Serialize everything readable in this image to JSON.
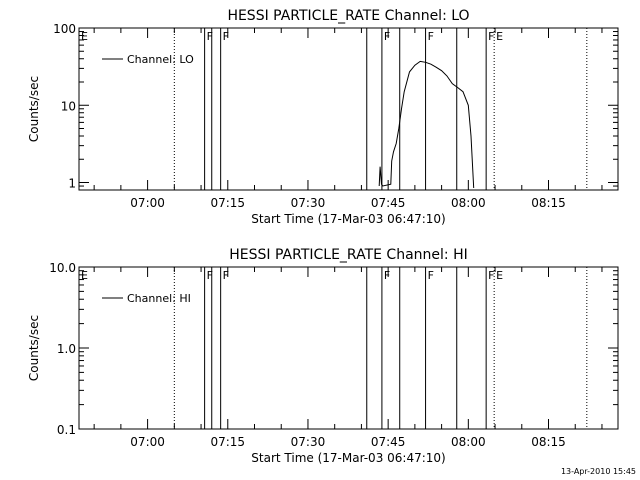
{
  "footer": {
    "timestamp": "13-Apr-2010 15:45"
  },
  "chart_data": [
    {
      "type": "line",
      "title": "HESSI PARTICLE_RATE Channel: LO",
      "xlabel": "Start Time (17-Mar-03 06:47:10)",
      "ylabel": "Counts/sec",
      "yscale": "log",
      "ylim": [
        0.8,
        100
      ],
      "ytick_labels": [
        "1",
        "10",
        "100"
      ],
      "ytick_values": [
        1,
        10,
        100
      ],
      "xtick_labels": [
        "07:00",
        "07:15",
        "07:30",
        "07:45",
        "08:00",
        "08:15"
      ],
      "xtick_values": [
        "07:00",
        "07:15",
        "07:30",
        "07:45",
        "08:00",
        "08:15"
      ],
      "xlim": [
        "06:47:10",
        "08:28:00"
      ],
      "legend": "top-left",
      "series": [
        {
          "name": "Channel: LO",
          "x": [
            "07:43:20",
            "07:43:30",
            "07:43:45",
            "07:44:00",
            "07:45:30",
            "07:45:40",
            "07:46:00",
            "07:46:30",
            "07:47:00",
            "07:47:30",
            "07:48:00",
            "07:49:00",
            "07:50:00",
            "07:51:00",
            "07:52:00",
            "07:53:00",
            "07:54:00",
            "07:55:00",
            "07:56:00",
            "07:57:00",
            "07:58:00",
            "07:59:00",
            "08:00:00",
            "08:00:30",
            "08:01:00"
          ],
          "y": [
            0.9,
            1.6,
            0.95,
            0.9,
            0.95,
            1.9,
            2.5,
            3.2,
            5,
            9,
            15,
            27,
            33,
            37,
            36,
            34,
            31,
            28,
            24,
            19,
            17,
            15,
            10,
            4,
            0.85
          ]
        }
      ],
      "markers": [
        {
          "label": "E",
          "x": "06:47:10",
          "style": "dotted"
        },
        {
          "label": "",
          "x": "07:05:00",
          "style": "dotted"
        },
        {
          "label": "F",
          "x": "07:10:40",
          "style": "solid"
        },
        {
          "label": "",
          "x": "07:12:00",
          "style": "solid"
        },
        {
          "label": "F",
          "x": "07:13:40",
          "style": "solid"
        },
        {
          "label": "",
          "x": "07:41:00",
          "style": "solid"
        },
        {
          "label": "F",
          "x": "07:43:50",
          "style": "solid"
        },
        {
          "label": "",
          "x": "07:47:10",
          "style": "solid"
        },
        {
          "label": "F",
          "x": "07:52:00",
          "style": "solid"
        },
        {
          "label": "",
          "x": "07:57:50",
          "style": "solid"
        },
        {
          "label": "F",
          "x": "08:03:20",
          "style": "solid"
        },
        {
          "label": "E",
          "x": "08:04:50",
          "style": "dotted"
        },
        {
          "label": "",
          "x": "08:22:10",
          "style": "dotted"
        }
      ]
    },
    {
      "type": "line",
      "title": "HESSI PARTICLE_RATE Channel: HI",
      "xlabel": "Start Time (17-Mar-03 06:47:10)",
      "ylabel": "Counts/sec",
      "yscale": "log",
      "ylim": [
        0.1,
        10
      ],
      "ytick_labels": [
        "0.1",
        "1.0",
        "10.0"
      ],
      "ytick_values": [
        0.1,
        1,
        10
      ],
      "xtick_labels": [
        "07:00",
        "07:15",
        "07:30",
        "07:45",
        "08:00",
        "08:15"
      ],
      "xtick_values": [
        "07:00",
        "07:15",
        "07:30",
        "07:45",
        "08:00",
        "08:15"
      ],
      "xlim": [
        "06:47:10",
        "08:28:00"
      ],
      "legend": "top-left",
      "series": [
        {
          "name": "Channel: HI",
          "x": [],
          "y": []
        }
      ],
      "markers": [
        {
          "label": "E",
          "x": "06:47:10",
          "style": "dotted"
        },
        {
          "label": "",
          "x": "07:05:00",
          "style": "dotted"
        },
        {
          "label": "F",
          "x": "07:10:40",
          "style": "solid"
        },
        {
          "label": "",
          "x": "07:12:00",
          "style": "solid"
        },
        {
          "label": "F",
          "x": "07:13:40",
          "style": "solid"
        },
        {
          "label": "",
          "x": "07:41:00",
          "style": "solid"
        },
        {
          "label": "F",
          "x": "07:43:50",
          "style": "solid"
        },
        {
          "label": "",
          "x": "07:47:10",
          "style": "solid"
        },
        {
          "label": "F",
          "x": "07:52:00",
          "style": "solid"
        },
        {
          "label": "",
          "x": "07:57:50",
          "style": "solid"
        },
        {
          "label": "F",
          "x": "08:03:20",
          "style": "solid"
        },
        {
          "label": "E",
          "x": "08:04:50",
          "style": "dotted"
        },
        {
          "label": "",
          "x": "08:22:10",
          "style": "dotted"
        }
      ]
    }
  ]
}
